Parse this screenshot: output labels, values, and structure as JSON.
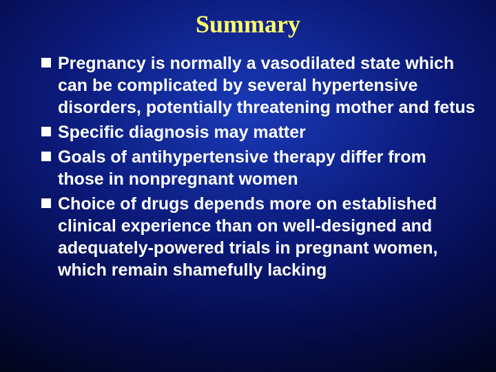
{
  "title": "Summary",
  "bullets": [
    {
      "text": "Pregnancy is normally a vasodilated state which can be complicated by several hypertensive disorders, potentially threatening mother and fetus"
    },
    {
      "text": "Specific diagnosis may matter"
    },
    {
      "text": "Goals of antihypertensive therapy differ from those in nonpregnant women"
    },
    {
      "text": "Choice of drugs depends more on established clinical experience than on well-designed and adequately-powered trials in pregnant women, which remain shamefully lacking"
    }
  ],
  "style": {
    "title_color": "#ffff66",
    "title_fontsize": 36,
    "text_color": "#ffffff",
    "text_fontsize": 25,
    "bullet_marker_color": "#ffffff",
    "bullet_marker_size": 14,
    "background_gradient_inner": "#1a3ab8",
    "background_gradient_outer": "#000000"
  }
}
